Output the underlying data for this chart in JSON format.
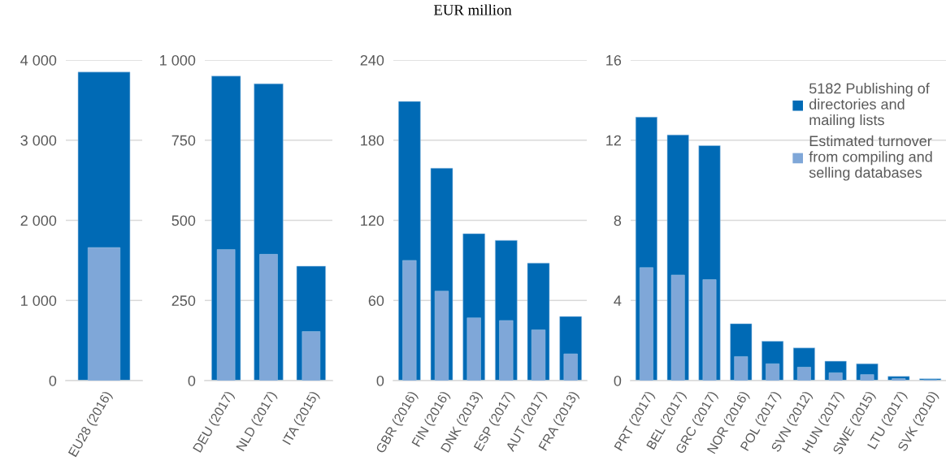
{
  "chart_data": [
    {
      "type": "bar",
      "categories": [
        "EU28 (2016)"
      ],
      "series": [
        {
          "color": "#006ab5",
          "values": [
            3850
          ]
        },
        {
          "color": "#7fa7d8",
          "values": [
            1660
          ]
        }
      ],
      "ylim": [
        0,
        4000
      ],
      "yticks": [
        0,
        {
          "value": 1000,
          "label": "1 000"
        },
        {
          "value": 2000,
          "label": "2 000"
        },
        {
          "value": 3000,
          "label": "3 000"
        },
        {
          "value": 4000,
          "label": "4 000"
        }
      ],
      "grid": "y"
    },
    {
      "type": "bar",
      "categories": [
        "DEU (2017)",
        "NLD (2017)",
        "ITA (2015)"
      ],
      "series": [
        {
          "color": "#006ab5",
          "values": [
            950,
            926,
            357
          ]
        },
        {
          "color": "#7fa7d8",
          "values": [
            409,
            394,
            153
          ]
        }
      ],
      "ylim": [
        0,
        1000
      ],
      "yticks": [
        0,
        250,
        500,
        750,
        {
          "value": 1000,
          "label": "1 000"
        }
      ],
      "grid": "y"
    },
    {
      "type": "bar",
      "title": "EUR million",
      "categories": [
        "GBR (2016)",
        "FIN (2016)",
        "DNK (2013)",
        "ESP (2017)",
        "AUT (2017)",
        "FRA (2013)"
      ],
      "series": [
        {
          "color": "#006ab5",
          "values": [
            209,
            159,
            110,
            105,
            88,
            48
          ]
        },
        {
          "color": "#7fa7d8",
          "values": [
            90,
            67,
            47,
            45,
            38,
            20
          ]
        }
      ],
      "ylim": [
        0,
        240
      ],
      "yticks": [
        0,
        60,
        120,
        180,
        240
      ],
      "grid": "y"
    },
    {
      "type": "bar",
      "categories": [
        "PRT (2017)",
        "BEL (2017)",
        "GRC (2017)",
        "NOR (2016)",
        "POL (2017)",
        "SVN (2012)",
        "HUN (2017)",
        "SWE (2015)",
        "LTU (2017)",
        "SVK (2010)"
      ],
      "series": [
        {
          "name": "5182 Publishing of directories and mailing lists",
          "color": "#006ab5",
          "values": [
            13.15,
            12.26,
            11.73,
            2.84,
            1.96,
            1.63,
            0.97,
            0.84,
            0.21,
            0.09
          ]
        },
        {
          "name": "Estimated turnover from compiling and selling databases",
          "color": "#7fa7d8",
          "values": [
            5.64,
            5.27,
            5.04,
            1.2,
            0.84,
            0.67,
            0.39,
            0.3,
            0.1,
            0.04
          ]
        }
      ],
      "ylim": [
        0,
        16
      ],
      "yticks": [
        0,
        4,
        8,
        12,
        16
      ],
      "grid": "y",
      "legend": "top right"
    }
  ]
}
